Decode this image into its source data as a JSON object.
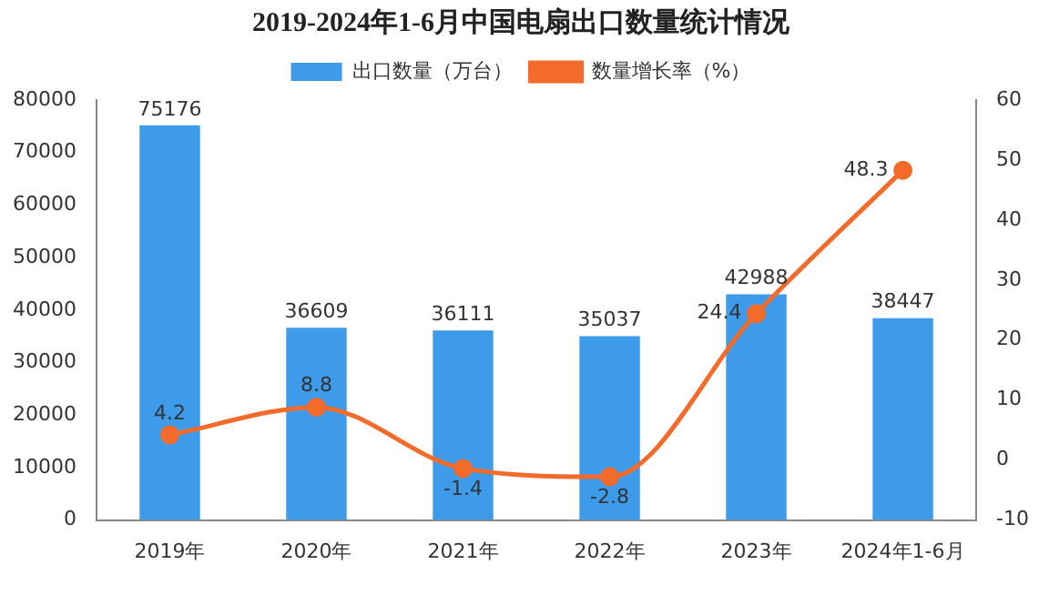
{
  "chart_data": {
    "type": "bar",
    "title": "2019-2024年1-6月中国电扇出口数量统计情况",
    "categories": [
      "2019年",
      "2020年",
      "2021年",
      "2022年",
      "2023年",
      "2024年1-6月"
    ],
    "series": [
      {
        "name": "出口数量（万台）",
        "color": "#3d9be9",
        "values": [
          75176,
          36609,
          36111,
          35037,
          42988,
          38447
        ]
      },
      {
        "name": "数量增长率（%）",
        "type": "line",
        "axis": "y2",
        "color": "#f26b2a",
        "values": [
          4.2,
          8.8,
          -1.4,
          -2.8,
          24.4,
          48.3
        ]
      }
    ],
    "ylim": [
      0,
      80000
    ],
    "yticks": [
      0,
      10000,
      20000,
      30000,
      40000,
      50000,
      60000,
      70000,
      80000
    ],
    "y2lim": [
      -10,
      60
    ],
    "y2ticks": [
      -10,
      0,
      10,
      20,
      30,
      40,
      50,
      60
    ],
    "legend": "top",
    "marker": "circle",
    "grid": false,
    "data_labels": true
  }
}
